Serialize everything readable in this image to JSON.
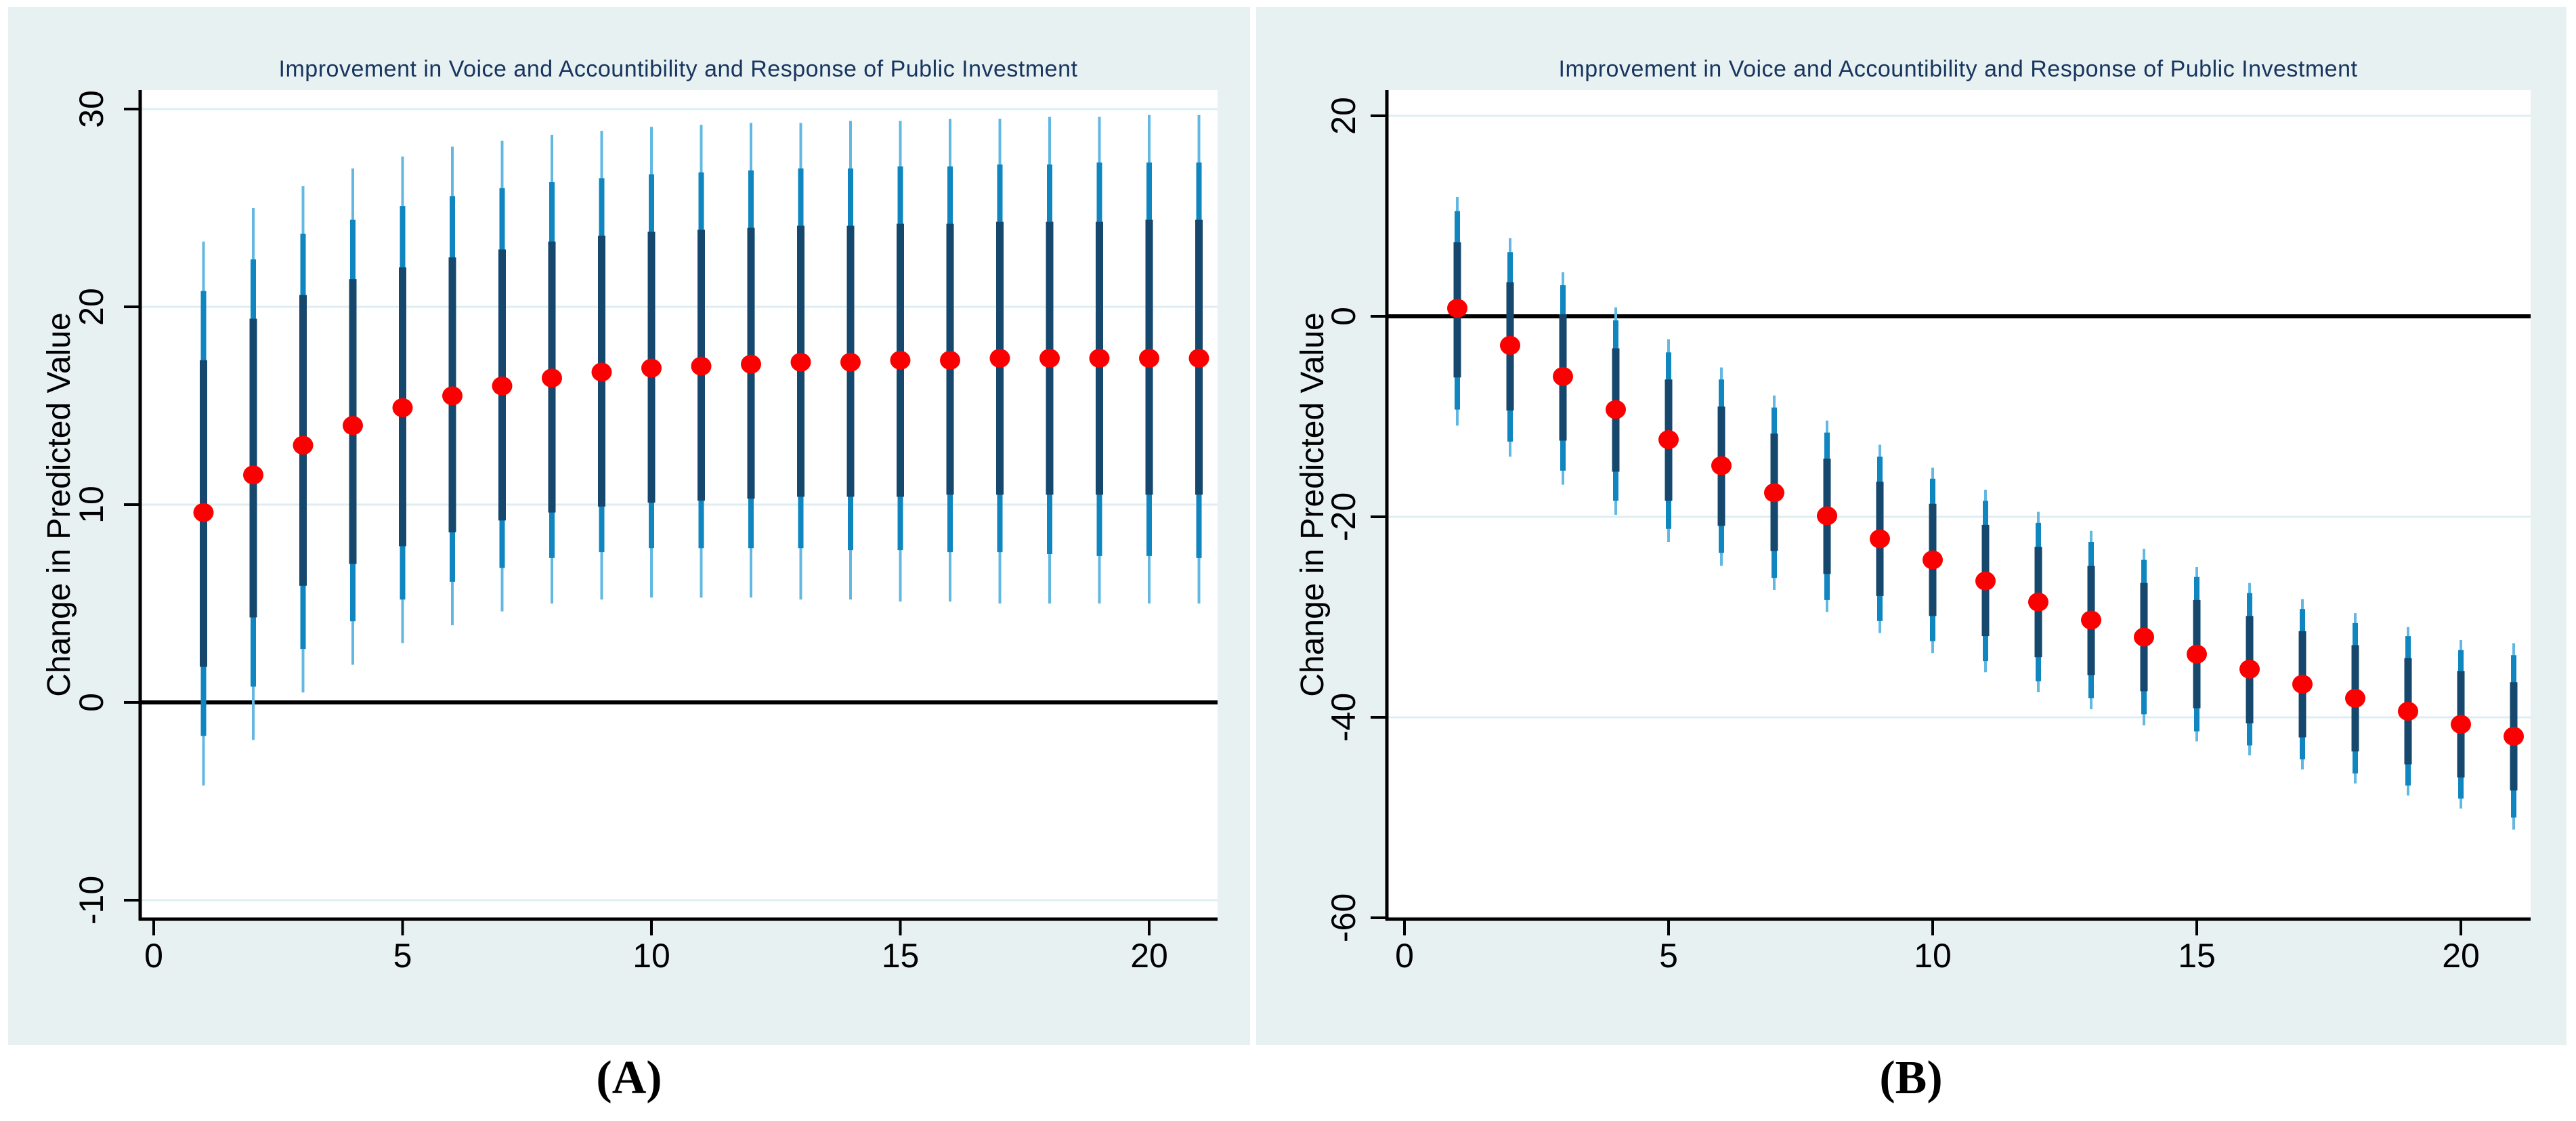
{
  "figure": {
    "description": "Two-panel figure of predicted-value responses with nested confidence intervals",
    "captions": {
      "a": "(A)",
      "b": "(B)"
    }
  },
  "colors": {
    "panel_background": "#e8f1f2",
    "plot_background": "#ffffff",
    "gridline": "#dfeef0",
    "axis": "#000000",
    "zero_line": "#000000",
    "ci_outer": "#63b8e2",
    "ci_mid": "#0f86bf",
    "ci_inner": "#16476d",
    "point": "#fb0000",
    "title": "#17355e",
    "tick_label": "#000000"
  },
  "chart_data": [
    {
      "id": "A",
      "type": "scatter",
      "caption": "(A)",
      "title": "Improvement in Voice and Accountibility and Response of Public Investment",
      "xlabel": "",
      "ylabel": "Change in Predicted Value",
      "legend": "none",
      "grid": "horizontal",
      "x_ticks": [
        0,
        5,
        10,
        15,
        20
      ],
      "y_ticks": [
        30,
        20,
        10,
        0,
        -10
      ],
      "xlim": [
        -0.3,
        21.4
      ],
      "ylim": [
        -11,
        31
      ],
      "zero_reference_line": 0,
      "x": [
        1,
        2,
        3,
        4,
        5,
        6,
        7,
        8,
        9,
        10,
        11,
        12,
        13,
        14,
        15,
        16,
        17,
        18,
        19,
        20,
        21
      ],
      "y": [
        9.6,
        11.5,
        13,
        14,
        14.9,
        15.5,
        16,
        16.4,
        16.7,
        16.9,
        17,
        17.1,
        17.2,
        17.2,
        17.3,
        17.3,
        17.4,
        17.4,
        17.4,
        17.4,
        17.4
      ],
      "ci_inner": [
        [
          1.8,
          17.3
        ],
        [
          4.3,
          19.4
        ],
        [
          5.9,
          20.6
        ],
        [
          7,
          21.4
        ],
        [
          7.9,
          22
        ],
        [
          8.6,
          22.5
        ],
        [
          9.2,
          22.9
        ],
        [
          9.6,
          23.3
        ],
        [
          9.9,
          23.6
        ],
        [
          10.1,
          23.8
        ],
        [
          10.2,
          23.9
        ],
        [
          10.3,
          24
        ],
        [
          10.4,
          24.1
        ],
        [
          10.4,
          24.1
        ],
        [
          10.4,
          24.2
        ],
        [
          10.5,
          24.2
        ],
        [
          10.5,
          24.3
        ],
        [
          10.5,
          24.3
        ],
        [
          10.5,
          24.3
        ],
        [
          10.5,
          24.4
        ],
        [
          10.5,
          24.4
        ]
      ],
      "ci_mid": [
        [
          -1.7,
          20.8
        ],
        [
          0.8,
          22.4
        ],
        [
          2.7,
          23.7
        ],
        [
          4.1,
          24.4
        ],
        [
          5.2,
          25.1
        ],
        [
          6.1,
          25.6
        ],
        [
          6.8,
          26
        ],
        [
          7.3,
          26.3
        ],
        [
          7.6,
          26.5
        ],
        [
          7.8,
          26.7
        ],
        [
          7.8,
          26.8
        ],
        [
          7.8,
          26.9
        ],
        [
          7.8,
          27
        ],
        [
          7.7,
          27
        ],
        [
          7.7,
          27.1
        ],
        [
          7.6,
          27.1
        ],
        [
          7.6,
          27.2
        ],
        [
          7.5,
          27.2
        ],
        [
          7.4,
          27.3
        ],
        [
          7.4,
          27.3
        ],
        [
          7.3,
          27.3
        ]
      ],
      "ci_outer": [
        [
          -4.2,
          23.3
        ],
        [
          -1.9,
          25
        ],
        [
          0.5,
          26.1
        ],
        [
          1.9,
          27
        ],
        [
          3,
          27.6
        ],
        [
          3.9,
          28.1
        ],
        [
          4.6,
          28.4
        ],
        [
          5,
          28.7
        ],
        [
          5.2,
          28.9
        ],
        [
          5.3,
          29.1
        ],
        [
          5.3,
          29.2
        ],
        [
          5.3,
          29.3
        ],
        [
          5.2,
          29.3
        ],
        [
          5.2,
          29.4
        ],
        [
          5.1,
          29.4
        ],
        [
          5.1,
          29.5
        ],
        [
          5,
          29.5
        ],
        [
          5,
          29.6
        ],
        [
          5,
          29.6
        ],
        [
          5,
          29.7
        ],
        [
          5,
          29.7
        ]
      ]
    },
    {
      "id": "B",
      "type": "scatter",
      "caption": "(B)",
      "title": "Improvement in Voice and Accountibility and Response of Public Investment",
      "xlabel": "",
      "ylabel": "Change in Predicted Value",
      "legend": "none",
      "grid": "horizontal",
      "x_ticks": [
        0,
        5,
        10,
        15,
        20
      ],
      "y_ticks": [
        20,
        0,
        -20,
        -40,
        -60
      ],
      "xlim": [
        -0.4,
        21.3
      ],
      "ylim": [
        -60.1,
        22.6
      ],
      "zero_reference_line": 0,
      "x": [
        1,
        2,
        3,
        4,
        5,
        6,
        7,
        8,
        9,
        10,
        11,
        12,
        13,
        14,
        15,
        16,
        17,
        18,
        19,
        20,
        21
      ],
      "y": [
        0.8,
        -2.9,
        -6,
        -9.3,
        -12.3,
        -14.9,
        -17.6,
        -19.9,
        -22.2,
        -24.3,
        -26.4,
        -28.5,
        -30.3,
        -32,
        -33.7,
        -35.2,
        -36.7,
        -38.1,
        -39.4,
        -40.7,
        -41.9
      ],
      "ci_inner": [
        [
          -6.1,
          7.4
        ],
        [
          -9.4,
          3.4
        ],
        [
          -12.4,
          0.2
        ],
        [
          -15.5,
          -3.2
        ],
        [
          -18.4,
          -6.3
        ],
        [
          -20.9,
          -9
        ],
        [
          -23.4,
          -11.7
        ],
        [
          -25.7,
          -14.2
        ],
        [
          -27.9,
          -16.5
        ],
        [
          -29.9,
          -18.7
        ],
        [
          -31.9,
          -20.8
        ],
        [
          -34,
          -23
        ],
        [
          -35.8,
          -24.9
        ],
        [
          -37.4,
          -26.6
        ],
        [
          -39.1,
          -28.3
        ],
        [
          -40.6,
          -29.9
        ],
        [
          -42,
          -31.4
        ],
        [
          -43.4,
          -32.8
        ],
        [
          -44.7,
          -34.1
        ],
        [
          -46,
          -35.4
        ],
        [
          -47.3,
          -36.5
        ]
      ],
      "ci_mid": [
        [
          -9.3,
          10.5
        ],
        [
          -12.5,
          6.4
        ],
        [
          -15.4,
          3.1
        ],
        [
          -18.4,
          -0.4
        ],
        [
          -21.2,
          -3.6
        ],
        [
          -23.6,
          -6.3
        ],
        [
          -26.1,
          -9.1
        ],
        [
          -28.3,
          -11.6
        ],
        [
          -30.4,
          -14
        ],
        [
          -32.4,
          -16.2
        ],
        [
          -34.4,
          -18.4
        ],
        [
          -36.4,
          -20.6
        ],
        [
          -38.1,
          -22.5
        ],
        [
          -39.7,
          -24.3
        ],
        [
          -41.4,
          -26
        ],
        [
          -42.8,
          -27.6
        ],
        [
          -44.2,
          -29.2
        ],
        [
          -45.6,
          -30.6
        ],
        [
          -46.8,
          -31.9
        ],
        [
          -48.1,
          -33.3
        ],
        [
          -50,
          -33.8
        ]
      ],
      "ci_outer": [
        [
          -10.9,
          11.9
        ],
        [
          -14,
          7.8
        ],
        [
          -16.8,
          4.4
        ],
        [
          -19.8,
          0.9
        ],
        [
          -22.5,
          -2.3
        ],
        [
          -24.9,
          -5.1
        ],
        [
          -27.3,
          -7.9
        ],
        [
          -29.5,
          -10.4
        ],
        [
          -31.6,
          -12.8
        ],
        [
          -33.6,
          -15.1
        ],
        [
          -35.5,
          -17.3
        ],
        [
          -37.5,
          -19.5
        ],
        [
          -39.2,
          -21.4
        ],
        [
          -40.8,
          -23.2
        ],
        [
          -42.4,
          -25
        ],
        [
          -43.8,
          -26.6
        ],
        [
          -45.2,
          -28.2
        ],
        [
          -46.6,
          -29.6
        ],
        [
          -47.8,
          -31
        ],
        [
          -49.1,
          -32.3
        ],
        [
          -51.2,
          -32.6
        ]
      ]
    }
  ]
}
